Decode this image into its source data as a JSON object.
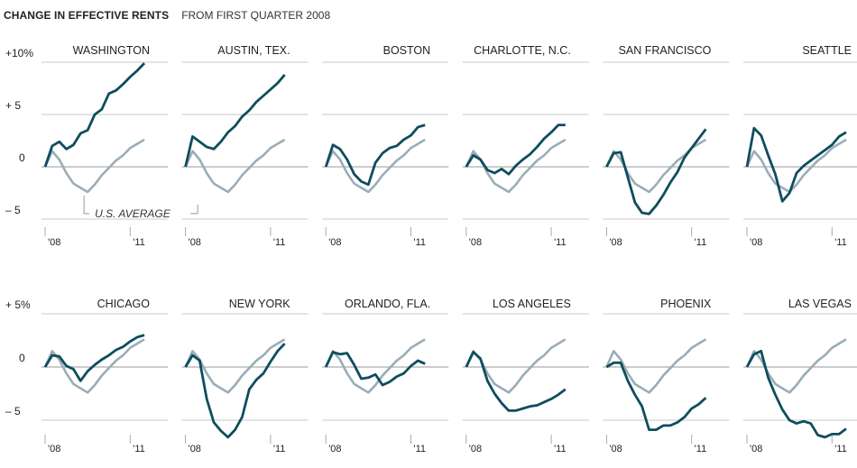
{
  "header": {
    "title": "CHANGE IN EFFECTIVE RENTS",
    "subtitle": "FROM FIRST QUARTER 2008"
  },
  "colors": {
    "city_line": "#0e4d5e",
    "us_line": "#9aadb8",
    "grid": "#c8c8c8",
    "zero_line": "#999999",
    "text": "#222222"
  },
  "chart_data": {
    "type": "line",
    "x": [
      2008.0,
      2008.25,
      2008.5,
      2008.75,
      2009.0,
      2009.25,
      2009.5,
      2009.75,
      2010.0,
      2010.25,
      2010.5,
      2010.75,
      2011.0,
      2011.25,
      2011.5
    ],
    "x_tick_labels": [
      "'08",
      "'11"
    ],
    "us_average_label": "U.S. AVERAGE",
    "us_average": [
      0,
      1.5,
      0.7,
      -0.6,
      -1.6,
      -2.0,
      -2.4,
      -1.7,
      -0.8,
      -0.1,
      0.6,
      1.1,
      1.8,
      2.2,
      2.6
    ],
    "rows": [
      {
        "ylim": [
          -5,
          10
        ],
        "y_ticks": [
          {
            "value": 10,
            "label": "+10%"
          },
          {
            "value": 5,
            "label": "+  5"
          },
          {
            "value": 0,
            "label": "0"
          },
          {
            "value": -5,
            "label": "–  5"
          }
        ],
        "cities": [
          {
            "name": "WASHINGTON",
            "values": [
              0,
              2.0,
              2.4,
              1.7,
              2.1,
              3.2,
              3.5,
              5.0,
              5.5,
              7.0,
              7.3,
              7.9,
              8.6,
              9.2,
              9.9
            ]
          },
          {
            "name": "AUSTIN, TEX.",
            "values": [
              0,
              2.9,
              2.4,
              1.9,
              1.7,
              2.4,
              3.3,
              3.9,
              4.8,
              5.4,
              6.2,
              6.8,
              7.4,
              8.0,
              8.8
            ]
          },
          {
            "name": "BOSTON",
            "values": [
              0,
              2.1,
              1.7,
              0.7,
              -0.7,
              -1.4,
              -1.7,
              0.4,
              1.3,
              1.8,
              2.0,
              2.6,
              3.0,
              3.8,
              4.0
            ]
          },
          {
            "name": "CHARLOTTE, N.C.",
            "values": [
              0,
              1.1,
              0.7,
              -0.3,
              -0.6,
              -0.2,
              -0.7,
              0.1,
              0.7,
              1.2,
              1.9,
              2.7,
              3.3,
              4.0,
              4.0
            ]
          },
          {
            "name": "SAN FRANCISCO",
            "values": [
              0,
              1.3,
              1.4,
              -1.0,
              -3.4,
              -4.4,
              -4.5,
              -3.7,
              -2.7,
              -1.5,
              -0.5,
              0.9,
              1.8,
              2.7,
              3.6
            ]
          },
          {
            "name": "SEATTLE",
            "values": [
              0,
              3.7,
              3.0,
              1.1,
              -0.7,
              -3.3,
              -2.5,
              -0.6,
              0.1,
              0.6,
              1.1,
              1.6,
              2.1,
              2.9,
              3.3
            ]
          }
        ]
      },
      {
        "ylim": [
          -7,
          5
        ],
        "y_ticks": [
          {
            "value": 5,
            "label": "+  5%"
          },
          {
            "value": 0,
            "label": "0"
          },
          {
            "value": -5,
            "label": "–  5"
          }
        ],
        "cities": [
          {
            "name": "CHICAGO",
            "values": [
              0,
              1.1,
              1.0,
              0.1,
              -0.2,
              -1.3,
              -0.4,
              0.2,
              0.7,
              1.1,
              1.6,
              1.9,
              2.4,
              2.8,
              3.0
            ]
          },
          {
            "name": "NEW YORK",
            "values": [
              0,
              1.1,
              0.6,
              -3.0,
              -5.2,
              -6.0,
              -6.6,
              -5.9,
              -4.7,
              -2.1,
              -1.2,
              -0.6,
              0.5,
              1.5,
              2.2
            ]
          },
          {
            "name": "ORLANDO, FLA.",
            "values": [
              0,
              1.4,
              1.2,
              1.3,
              0.2,
              -1.1,
              -1.0,
              -0.7,
              -1.7,
              -1.4,
              -0.9,
              -0.6,
              0.1,
              0.6,
              0.3
            ]
          },
          {
            "name": "LOS ANGELES",
            "values": [
              0,
              1.4,
              0.8,
              -1.3,
              -2.5,
              -3.4,
              -4.1,
              -4.1,
              -3.9,
              -3.7,
              -3.6,
              -3.3,
              -3.0,
              -2.6,
              -2.1
            ]
          },
          {
            "name": "PHOENIX",
            "values": [
              0,
              0.4,
              0.4,
              -1.3,
              -2.6,
              -3.7,
              -5.9,
              -5.9,
              -5.5,
              -5.5,
              -5.2,
              -4.7,
              -3.9,
              -3.5,
              -2.9
            ]
          },
          {
            "name": "LAS VEGAS",
            "values": [
              0,
              1.2,
              1.5,
              -1.0,
              -2.6,
              -4.0,
              -5.0,
              -5.3,
              -5.1,
              -5.3,
              -6.4,
              -6.6,
              -6.3,
              -6.3,
              -5.8
            ]
          }
        ]
      }
    ]
  }
}
